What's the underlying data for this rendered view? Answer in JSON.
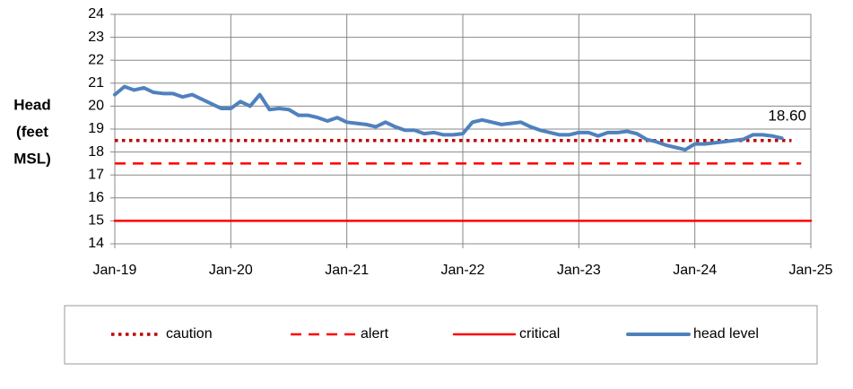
{
  "chart_data": {
    "type": "line",
    "ylabel": [
      "Head",
      "(feet",
      "MSL)"
    ],
    "xlim": [
      "2019-01",
      "2025-01"
    ],
    "xticks": [
      {
        "value": "2019-01",
        "label": "Jan-19"
      },
      {
        "value": "2020-01",
        "label": "Jan-20"
      },
      {
        "value": "2021-01",
        "label": "Jan-21"
      },
      {
        "value": "2022-01",
        "label": "Jan-22"
      },
      {
        "value": "2023-01",
        "label": "Jan-23"
      },
      {
        "value": "2024-01",
        "label": "Jan-24"
      },
      {
        "value": "2025-01",
        "label": "Jan-25"
      }
    ],
    "ylim": [
      14,
      24
    ],
    "yticks": [
      14,
      15,
      16,
      17,
      18,
      19,
      20,
      21,
      22,
      23,
      24
    ],
    "grid": true,
    "legend": "bottom",
    "series": [
      {
        "name": "caution",
        "color": "#c00000",
        "dash": "dotted",
        "x": [
          "2019-01",
          "2024-11"
        ],
        "values": [
          18.5,
          18.5
        ]
      },
      {
        "name": "alert",
        "color": "#ff0000",
        "dash": "dashed",
        "x": [
          "2019-01",
          "2024-12"
        ],
        "values": [
          17.5,
          17.5
        ]
      },
      {
        "name": "critical",
        "color": "#ff0000",
        "dash": "solid",
        "x": [
          "2019-01",
          "2025-01"
        ],
        "values": [
          15,
          15
        ]
      },
      {
        "name": "head level",
        "color": "#4f81bd",
        "dash": "solid",
        "x": [
          "2019-01",
          "2019-02",
          "2019-03",
          "2019-04",
          "2019-05",
          "2019-06",
          "2019-07",
          "2019-08",
          "2019-09",
          "2019-10",
          "2019-11",
          "2019-12",
          "2020-01",
          "2020-02",
          "2020-03",
          "2020-04",
          "2020-05",
          "2020-06",
          "2020-07",
          "2020-08",
          "2020-09",
          "2020-10",
          "2020-11",
          "2020-12",
          "2021-01",
          "2021-02",
          "2021-03",
          "2021-04",
          "2021-05",
          "2021-06",
          "2021-07",
          "2021-08",
          "2021-09",
          "2021-10",
          "2021-11",
          "2021-12",
          "2022-01",
          "2022-02",
          "2022-03",
          "2022-04",
          "2022-05",
          "2022-06",
          "2022-07",
          "2022-08",
          "2022-09",
          "2022-10",
          "2022-11",
          "2022-12",
          "2023-01",
          "2023-02",
          "2023-03",
          "2023-04",
          "2023-05",
          "2023-06",
          "2023-07",
          "2023-08",
          "2023-09",
          "2023-10",
          "2023-11",
          "2023-12",
          "2024-01",
          "2024-02",
          "2024-03",
          "2024-04",
          "2024-05",
          "2024-06",
          "2024-07",
          "2024-08",
          "2024-09",
          "2024-10"
        ],
        "values": [
          20.5,
          20.85,
          20.7,
          20.8,
          20.6,
          20.55,
          20.55,
          20.4,
          20.5,
          20.3,
          20.1,
          19.9,
          19.9,
          20.2,
          20.0,
          20.5,
          19.85,
          19.9,
          19.85,
          19.6,
          19.6,
          19.5,
          19.35,
          19.5,
          19.3,
          19.25,
          19.2,
          19.1,
          19.3,
          19.1,
          18.95,
          18.95,
          18.8,
          18.85,
          18.75,
          18.75,
          18.8,
          19.3,
          19.4,
          19.3,
          19.2,
          19.25,
          19.3,
          19.1,
          18.95,
          18.85,
          18.75,
          18.75,
          18.85,
          18.85,
          18.7,
          18.85,
          18.85,
          18.9,
          18.8,
          18.55,
          18.45,
          18.3,
          18.2,
          18.1,
          18.35,
          18.35,
          18.4,
          18.45,
          18.5,
          18.55,
          18.75,
          18.75,
          18.7,
          18.6
        ],
        "value_labels": [
          null,
          null,
          null,
          null,
          null,
          null,
          null,
          null,
          null,
          null,
          null,
          null,
          null,
          null,
          null,
          null,
          null,
          null,
          null,
          null,
          null,
          null,
          null,
          null,
          null,
          null,
          null,
          null,
          null,
          null,
          null,
          null,
          null,
          null,
          null,
          null,
          null,
          null,
          null,
          null,
          null,
          null,
          null,
          null,
          null,
          null,
          null,
          null,
          null,
          null,
          null,
          null,
          null,
          null,
          null,
          null,
          null,
          null,
          null,
          null,
          null,
          null,
          null,
          null,
          null,
          null,
          null,
          null,
          null,
          "18.60"
        ]
      }
    ]
  }
}
